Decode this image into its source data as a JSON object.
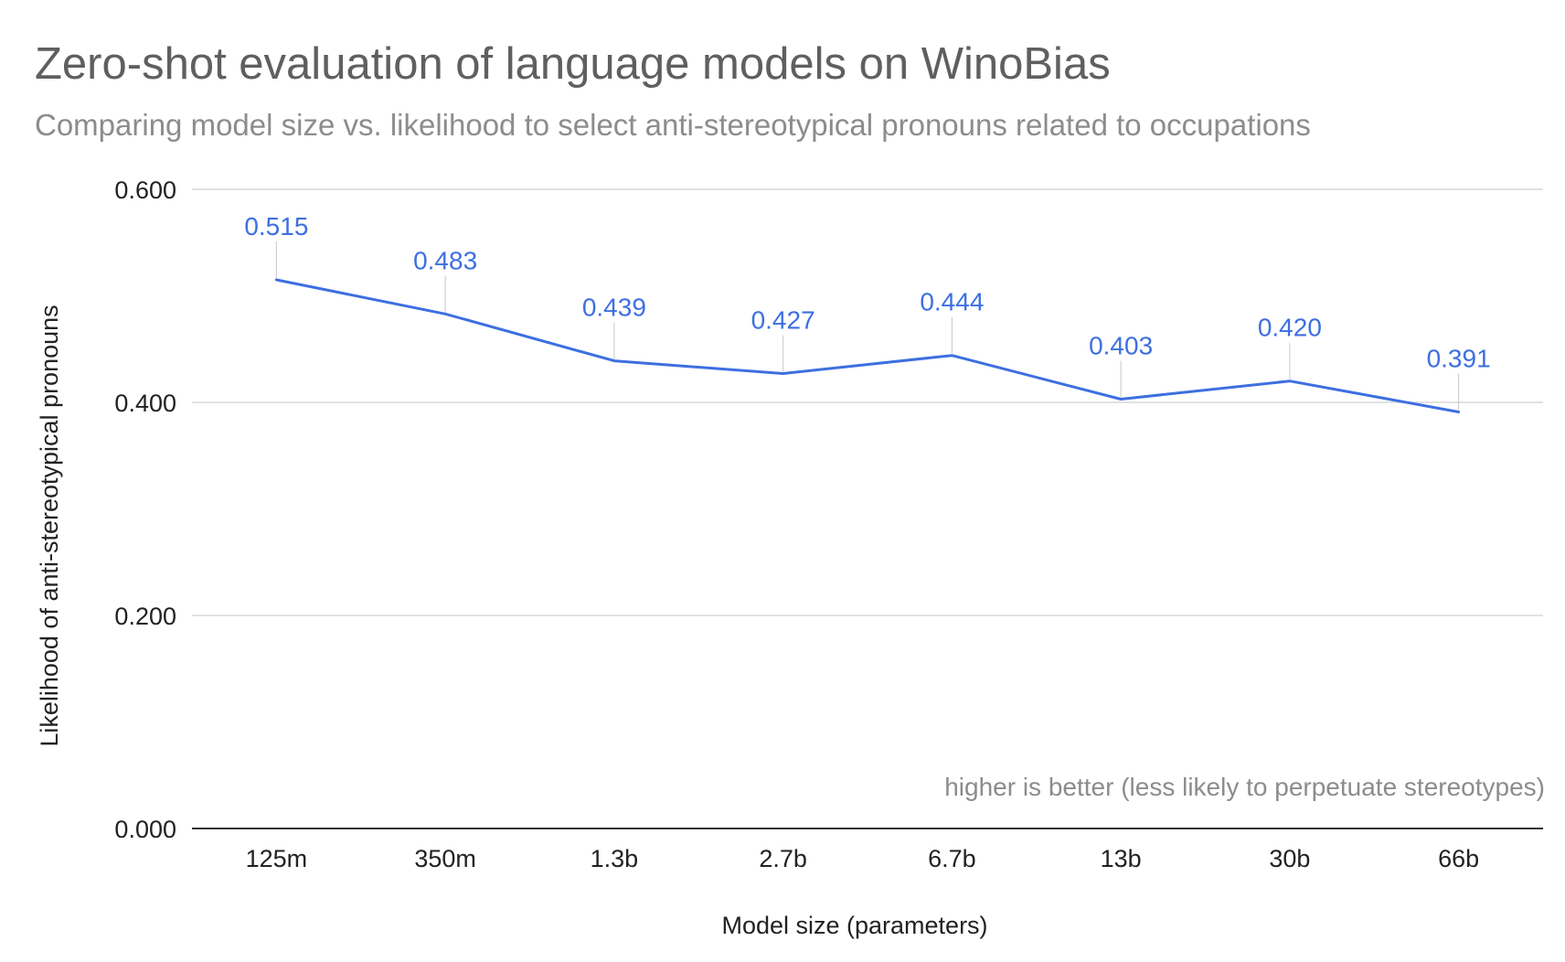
{
  "chart_data": {
    "type": "line",
    "title": "Zero-shot evaluation of language models on WinoBias",
    "subtitle": "Comparing model size vs. likelihood to select anti-stereotypical pronouns related to occupations",
    "xlabel": "Model size (parameters)",
    "ylabel": "Likelihood of anti-stereotypical pronouns",
    "categories": [
      "125m",
      "350m",
      "1.3b",
      "2.7b",
      "6.7b",
      "13b",
      "30b",
      "66b"
    ],
    "series": [
      {
        "values": [
          0.515,
          0.483,
          0.439,
          0.427,
          0.444,
          0.403,
          0.42,
          0.391
        ]
      }
    ],
    "data_labels": [
      "0.515",
      "0.483",
      "0.439",
      "0.427",
      "0.444",
      "0.403",
      "0.420",
      "0.391"
    ],
    "ylim": [
      0,
      0.6
    ],
    "yticks": [
      0,
      0.2,
      0.4,
      0.6
    ],
    "ytick_labels": [
      "0.000",
      "0.200",
      "0.400",
      "0.600"
    ],
    "grid": true,
    "annotation": "higher is better (less likely to perpetuate stereotypes)",
    "colors": {
      "line": "#3d6fe0",
      "grid": "#d9d9d9",
      "axis": "#333333"
    }
  }
}
